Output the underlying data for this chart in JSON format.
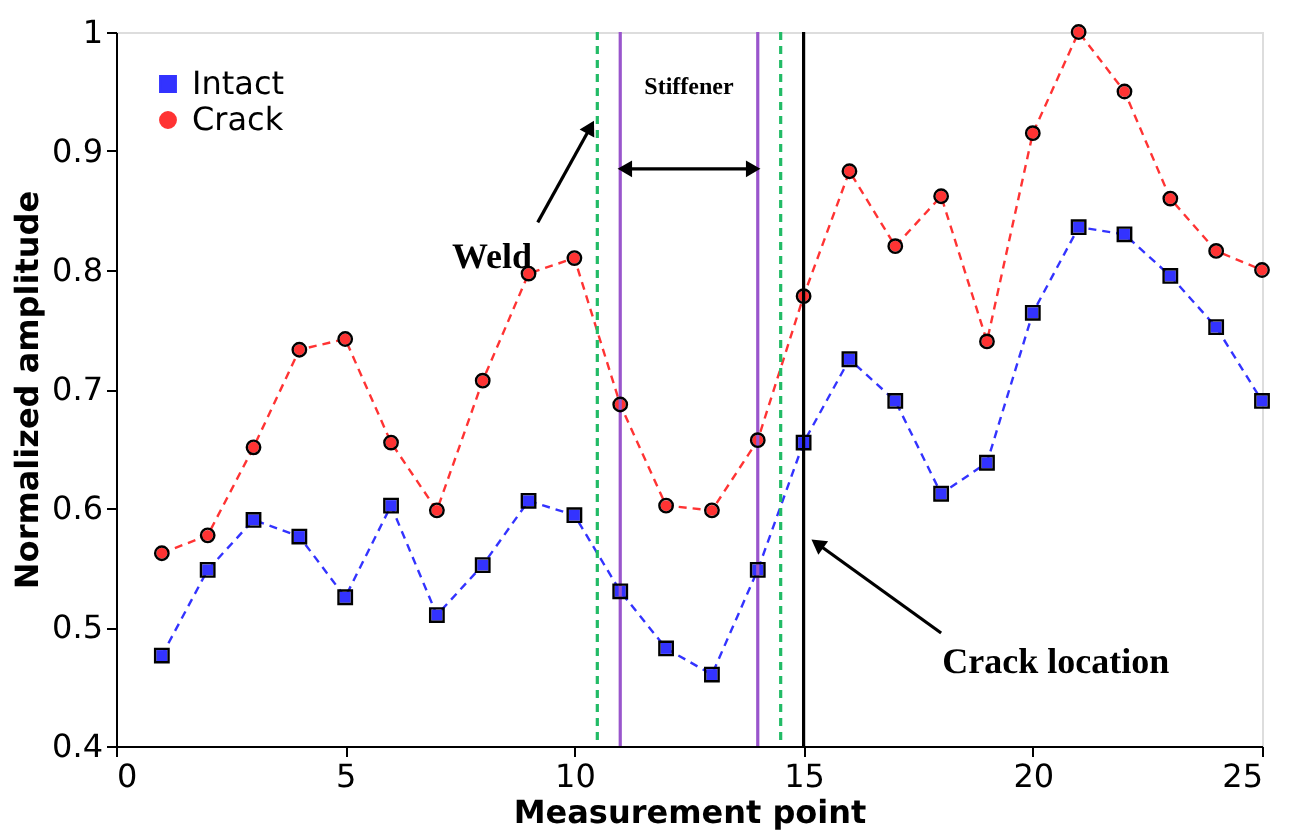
{
  "chart_data": {
    "type": "line",
    "xlabel": "Measurement point",
    "ylabel": "Normalized amplitude",
    "x": [
      1,
      2,
      3,
      4,
      5,
      6,
      7,
      8,
      9,
      10,
      11,
      12,
      13,
      14,
      15,
      16,
      17,
      18,
      19,
      20,
      21,
      22,
      23,
      24,
      25
    ],
    "series": [
      {
        "name": "Intact",
        "color": "#3333ff",
        "marker": "square",
        "values": [
          0.476,
          0.548,
          0.59,
          0.576,
          0.525,
          0.602,
          0.51,
          0.552,
          0.606,
          0.594,
          0.53,
          0.482,
          0.46,
          0.548,
          0.655,
          0.725,
          0.69,
          0.612,
          0.638,
          0.764,
          0.836,
          0.83,
          0.795,
          0.752,
          0.69
        ]
      },
      {
        "name": "Crack",
        "color": "#ff3333",
        "marker": "circle",
        "values": [
          0.562,
          0.577,
          0.651,
          0.733,
          0.742,
          0.655,
          0.598,
          0.707,
          0.797,
          0.81,
          0.687,
          0.602,
          0.598,
          0.657,
          0.778,
          0.883,
          0.82,
          0.862,
          0.74,
          0.915,
          1.0,
          0.95,
          0.86,
          0.816,
          0.8
        ]
      }
    ],
    "line_style": "dashed",
    "xlim": [
      0,
      25
    ],
    "xticks": [
      0,
      5,
      10,
      15,
      20,
      25
    ],
    "ylim": [
      0.4,
      1
    ],
    "yticks": [
      0.4,
      0.5,
      0.6,
      0.7,
      0.8,
      0.9,
      1
    ],
    "grid": false,
    "legend": "top left",
    "ref_lines": [
      {
        "axis": "x",
        "value": 10.5,
        "color": "#22bb66",
        "line_style": "dashed"
      },
      {
        "axis": "x",
        "value": 14.5,
        "color": "#22bb66",
        "line_style": "dashed"
      },
      {
        "axis": "x",
        "value": 11,
        "color": "#9955cc",
        "line_style": "solid"
      },
      {
        "axis": "x",
        "value": 14,
        "color": "#9955cc",
        "line_style": "solid"
      },
      {
        "axis": "x",
        "value": 15,
        "color": "#000000",
        "line_style": "solid"
      }
    ],
    "annotations": [
      {
        "text": "Weld",
        "x": 10.35,
        "y": 0.92
      },
      "Stiffener",
      {
        "text": "Crack location",
        "x": 15.3,
        "y": 0.57
      }
    ]
  }
}
